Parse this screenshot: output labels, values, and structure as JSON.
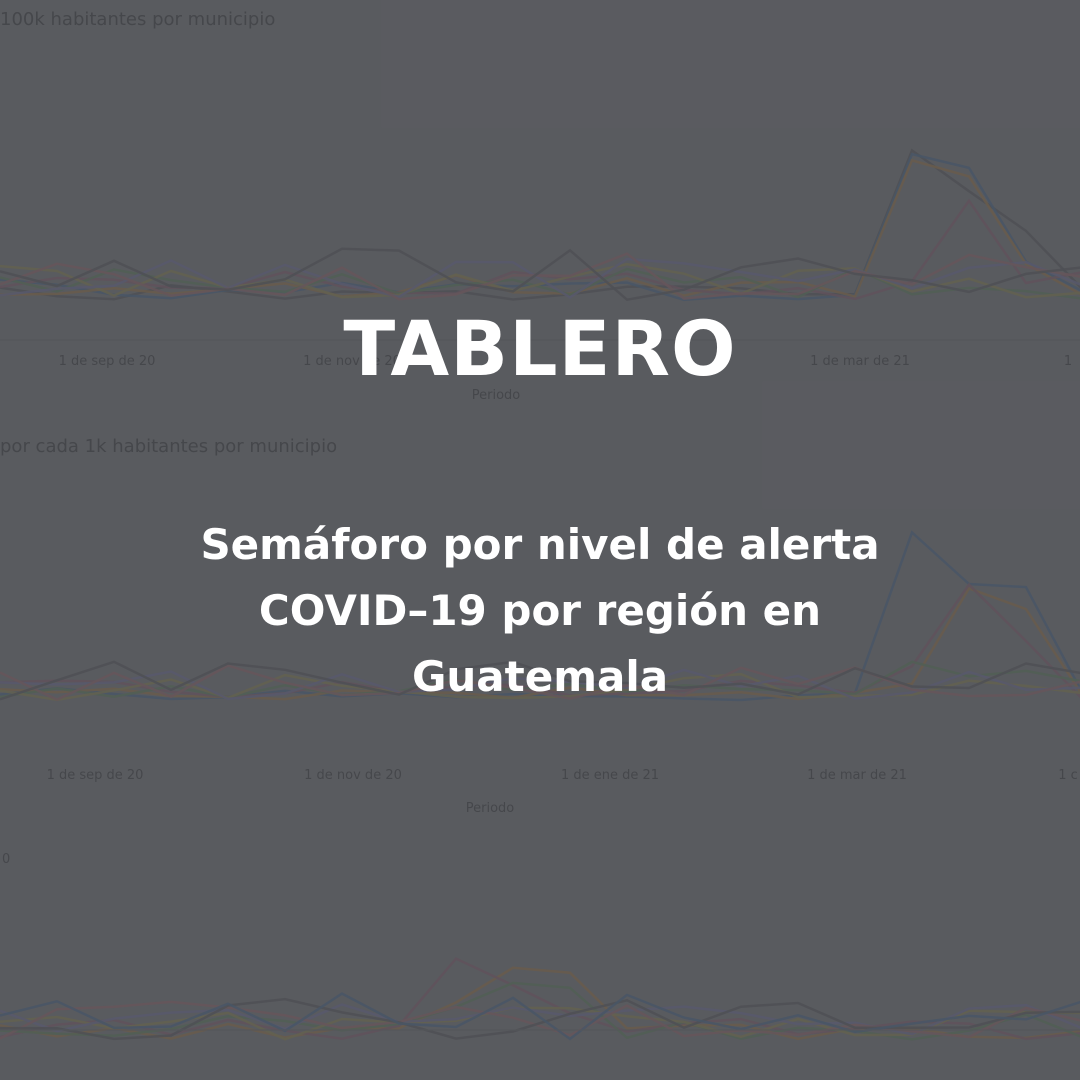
{
  "banner": {
    "title": "TABLERO",
    "subtitle": "Semáforo por nivel de alerta COVID–19 por región en Guatemala"
  },
  "colors": {
    "background": "#5e5f63",
    "text": "#ffffff",
    "muted_label": "#3a3b3f"
  },
  "background_charts": {
    "panels": [
      {
        "title": "100k habitantes por municipio",
        "xlabel": "Periodo",
        "ticks": [
          "1 de sep de 20",
          "1 de nov de 20",
          "1 de mar de 21",
          "1"
        ]
      },
      {
        "title": "por cada 1k habitantes por municipio",
        "xlabel": "Periodo",
        "ticks": [
          "1 de sep de 20",
          "1 de nov de 20",
          "1 de ene de 21",
          "1 de mar de 21",
          "1 c"
        ]
      },
      {
        "title": "0",
        "xlabel": "",
        "ticks": []
      }
    ]
  }
}
